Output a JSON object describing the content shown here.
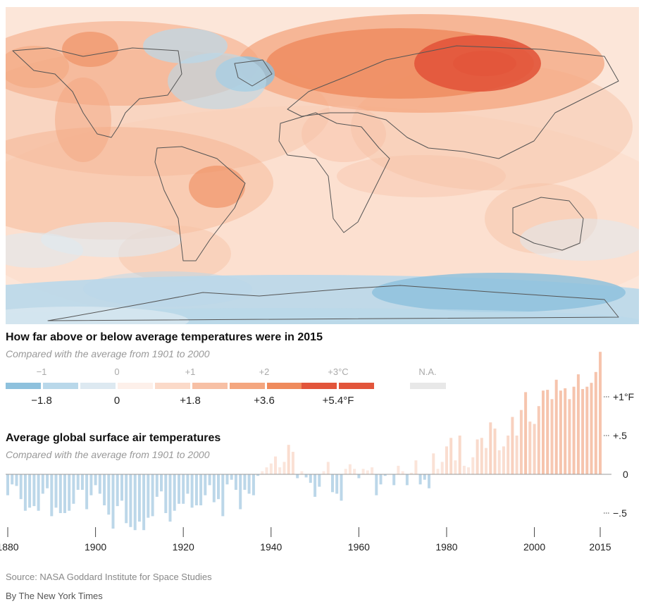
{
  "map": {
    "title": "How far above or below average temperatures were in 2015",
    "subtitle": "Compared with the average from 1901 to 2000",
    "anomaly_colors": [
      "#8ec1dd",
      "#b9d8ea",
      "#dde9f1",
      "#fdf0ea",
      "#fbdac9",
      "#f7c0a5",
      "#f4a67f",
      "#ef8a5c",
      "#e2553b"
    ],
    "land_outline_color": "#555555",
    "ocean_base_color": "#fce6d9"
  },
  "legend": {
    "celsius_labels": [
      "−1",
      "0",
      "+1",
      "+2",
      "+3°C"
    ],
    "fahrenheit_labels": [
      "−1.8",
      "0",
      "+1.8",
      "+3.6",
      "+5.4°F"
    ],
    "swatch_colors": [
      "#8ec1dd",
      "#b9d8ea",
      "#dde9f1",
      "#fdf0ea",
      "#fbdac9",
      "#f7c0a5",
      "#f4a67f",
      "#ef8a5c",
      "#e2553b",
      "#e2553b"
    ],
    "na_label": "N.A.",
    "na_color": "#e8e8e8"
  },
  "chart_data": {
    "type": "bar",
    "title": "Average global surface air temperatures",
    "subtitle": "Compared with the average from 1901 to 2000",
    "x_tick_labels": [
      "1880",
      "1900",
      "1920",
      "1940",
      "1960",
      "1980",
      "2000",
      "2015"
    ],
    "x_ticks": [
      1880,
      1900,
      1920,
      1940,
      1960,
      1980,
      2000,
      2015
    ],
    "y_tick_labels": [
      "+1°F",
      "+.5",
      "0",
      "−.5"
    ],
    "y_ticks": [
      1,
      0.5,
      0,
      -0.5
    ],
    "ylim": [
      -0.75,
      1.6
    ],
    "unit": "°F",
    "positive_color": "#f6c4ad",
    "negative_color": "#bcd7e9",
    "years": [
      1880,
      1881,
      1882,
      1883,
      1884,
      1885,
      1886,
      1887,
      1888,
      1889,
      1890,
      1891,
      1892,
      1893,
      1894,
      1895,
      1896,
      1897,
      1898,
      1899,
      1900,
      1901,
      1902,
      1903,
      1904,
      1905,
      1906,
      1907,
      1908,
      1909,
      1910,
      1911,
      1912,
      1913,
      1914,
      1915,
      1916,
      1917,
      1918,
      1919,
      1920,
      1921,
      1922,
      1923,
      1924,
      1925,
      1926,
      1927,
      1928,
      1929,
      1930,
      1931,
      1932,
      1933,
      1934,
      1935,
      1936,
      1937,
      1938,
      1939,
      1940,
      1941,
      1942,
      1943,
      1944,
      1945,
      1946,
      1947,
      1948,
      1949,
      1950,
      1951,
      1952,
      1953,
      1954,
      1955,
      1956,
      1957,
      1958,
      1959,
      1960,
      1961,
      1962,
      1963,
      1964,
      1965,
      1966,
      1967,
      1968,
      1969,
      1970,
      1971,
      1972,
      1973,
      1974,
      1975,
      1976,
      1977,
      1978,
      1979,
      1980,
      1981,
      1982,
      1983,
      1984,
      1985,
      1986,
      1987,
      1988,
      1989,
      1990,
      1991,
      1992,
      1993,
      1994,
      1995,
      1996,
      1997,
      1998,
      1999,
      2000,
      2001,
      2002,
      2003,
      2004,
      2005,
      2006,
      2007,
      2008,
      2009,
      2010,
      2011,
      2012,
      2013,
      2014,
      2015
    ],
    "values": [
      -0.27,
      -0.13,
      -0.15,
      -0.32,
      -0.47,
      -0.43,
      -0.41,
      -0.47,
      -0.25,
      -0.18,
      -0.54,
      -0.43,
      -0.5,
      -0.5,
      -0.47,
      -0.38,
      -0.2,
      -0.2,
      -0.45,
      -0.27,
      -0.14,
      -0.25,
      -0.4,
      -0.52,
      -0.7,
      -0.41,
      -0.34,
      -0.63,
      -0.68,
      -0.72,
      -0.61,
      -0.72,
      -0.56,
      -0.54,
      -0.29,
      -0.22,
      -0.5,
      -0.61,
      -0.47,
      -0.38,
      -0.38,
      -0.25,
      -0.43,
      -0.4,
      -0.4,
      -0.27,
      -0.14,
      -0.36,
      -0.32,
      -0.54,
      -0.13,
      -0.07,
      -0.2,
      -0.45,
      -0.2,
      -0.25,
      -0.27,
      -0.02,
      0.04,
      0.09,
      0.14,
      0.23,
      0.09,
      0.16,
      0.38,
      0.29,
      -0.05,
      0.04,
      -0.04,
      -0.11,
      -0.29,
      -0.16,
      0.04,
      0.16,
      -0.23,
      -0.25,
      -0.34,
      0.07,
      0.13,
      0.07,
      -0.05,
      0.07,
      0.05,
      0.09,
      -0.27,
      -0.13,
      -0.02,
      0.0,
      -0.14,
      0.11,
      0.04,
      -0.14,
      0.02,
      0.18,
      -0.13,
      -0.07,
      -0.18,
      0.27,
      0.07,
      0.16,
      0.36,
      0.47,
      0.18,
      0.5,
      0.11,
      0.09,
      0.22,
      0.45,
      0.47,
      0.34,
      0.67,
      0.59,
      0.31,
      0.36,
      0.5,
      0.74,
      0.5,
      0.83,
      1.06,
      0.68,
      0.65,
      0.88,
      1.08,
      1.09,
      0.97,
      1.22,
      1.08,
      1.11,
      0.97,
      1.13,
      1.29,
      1.1,
      1.13,
      1.18,
      1.32,
      1.58
    ]
  },
  "footer": {
    "source": "Source: NASA Goddard Institute for Space Studies",
    "byline": "By The New York Times"
  }
}
